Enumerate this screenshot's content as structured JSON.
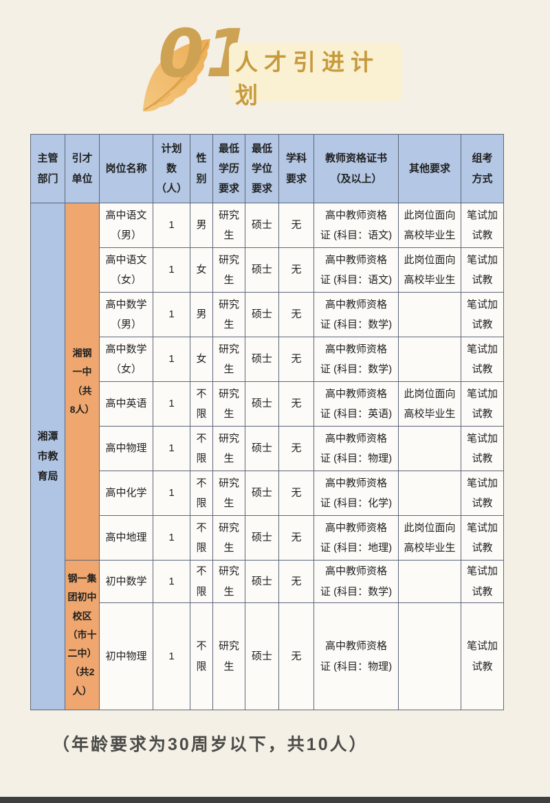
{
  "page": {
    "section_number": "01",
    "title": "人才引进计划",
    "footer_note": "（年龄要求为30周岁以下，共10人）"
  },
  "colors": {
    "accent_gold": "#c79a3e",
    "pill_background": "#faf1d2",
    "header_blue": "#b4c7e4",
    "dept_blue": "#b0c5e4",
    "unit_orange": "#efa76f",
    "page_background": "#f5f0e6"
  },
  "icons": {
    "leaf": "autumn-leaf"
  },
  "table": {
    "headers": [
      "主管\n部门",
      "引才\n单位",
      "岗位名称",
      "计划\n数\n（人）",
      "性\n别",
      "最低\n学历\n要求",
      "最低\n学位\n要求",
      "学科\n要求",
      "教师资格证书\n（及以上）",
      "其他要求",
      "组考\n方式"
    ],
    "dept": "湘潭\n市教\n育局",
    "units": [
      {
        "label": "湘钢\n一中\n（共\n8人）",
        "rowspan": 8
      },
      {
        "label": "钢一集\n团初中\n校区\n（市十\n二中）\n（共2\n人）",
        "rowspan": 2
      }
    ],
    "rows": [
      {
        "position": "高中语文\n（男）",
        "count": "1",
        "gender": "男",
        "min_edu": "研究\n生",
        "min_degree": "硕士",
        "subject_req": "无",
        "certificate": "高中教师资格\n证 (科目：语文)",
        "other_req": "此岗位面向\n高校毕业生",
        "exam_method": "笔试加\n试教"
      },
      {
        "position": "高中语文\n（女）",
        "count": "1",
        "gender": "女",
        "min_edu": "研究\n生",
        "min_degree": "硕士",
        "subject_req": "无",
        "certificate": "高中教师资格\n证 (科目：语文)",
        "other_req": "此岗位面向\n高校毕业生",
        "exam_method": "笔试加\n试教"
      },
      {
        "position": "高中数学\n（男）",
        "count": "1",
        "gender": "男",
        "min_edu": "研究\n生",
        "min_degree": "硕士",
        "subject_req": "无",
        "certificate": "高中教师资格\n证 (科目：数学)",
        "other_req": "",
        "exam_method": "笔试加\n试教"
      },
      {
        "position": "高中数学\n（女）",
        "count": "1",
        "gender": "女",
        "min_edu": "研究\n生",
        "min_degree": "硕士",
        "subject_req": "无",
        "certificate": "高中教师资格\n证 (科目：数学)",
        "other_req": "",
        "exam_method": "笔试加\n试教"
      },
      {
        "position": "高中英语",
        "count": "1",
        "gender": "不\n限",
        "min_edu": "研究\n生",
        "min_degree": "硕士",
        "subject_req": "无",
        "certificate": "高中教师资格\n证 (科目：英语)",
        "other_req": "此岗位面向\n高校毕业生",
        "exam_method": "笔试加\n试教"
      },
      {
        "position": "高中物理",
        "count": "1",
        "gender": "不\n限",
        "min_edu": "研究\n生",
        "min_degree": "硕士",
        "subject_req": "无",
        "certificate": "高中教师资格\n证 (科目：物理)",
        "other_req": "",
        "exam_method": "笔试加\n试教"
      },
      {
        "position": "高中化学",
        "count": "1",
        "gender": "不\n限",
        "min_edu": "研究\n生",
        "min_degree": "硕士",
        "subject_req": "无",
        "certificate": "高中教师资格\n证 (科目：化学)",
        "other_req": "",
        "exam_method": "笔试加\n试教"
      },
      {
        "position": "高中地理",
        "count": "1",
        "gender": "不\n限",
        "min_edu": "研究\n生",
        "min_degree": "硕士",
        "subject_req": "无",
        "certificate": "高中教师资格\n证 (科目：地理)",
        "other_req": "此岗位面向\n高校毕业生",
        "exam_method": "笔试加\n试教"
      },
      {
        "position": "初中数学",
        "count": "1",
        "gender": "不\n限",
        "min_edu": "研究\n生",
        "min_degree": "硕士",
        "subject_req": "无",
        "certificate": "高中教师资格\n证 (科目：数学)",
        "other_req": "",
        "exam_method": "笔试加\n试教"
      },
      {
        "position": "初中物理",
        "count": "1",
        "gender": "不\n限",
        "min_edu": "研究\n生",
        "min_degree": "硕士",
        "subject_req": "无",
        "certificate": "高中教师资格\n证 (科目：物理)",
        "other_req": "",
        "exam_method": "笔试加\n试教"
      }
    ]
  }
}
